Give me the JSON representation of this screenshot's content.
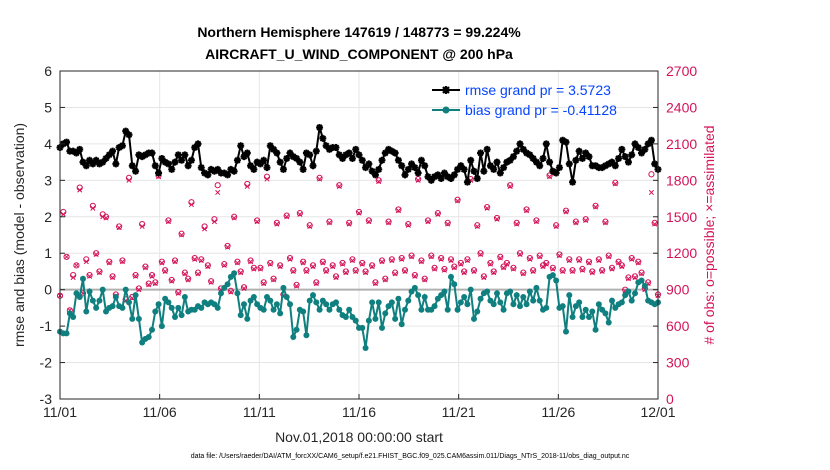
{
  "chart_data": {
    "type": "line",
    "title": "Northern Hemisphere 147619 / 148773 = 99.224%",
    "subtitle": "AIRCRAFT_U_WIND_COMPONENT @ 200 hPa",
    "xlabel": "Nov.01,2018 00:00:00 start",
    "ylabel": "rmse and bias (model - observation)",
    "y2label": "# of obs: o=possible; ×=assimilated",
    "footnote": "data file: /Users/raeder/DAI/ATM_forcXX/CAM6_setup/f.e21.FHIST_BGC.f09_025.CAM6assim.011/Diags_NTrS_2018-11/obs_diag_output.nc",
    "xlim": [
      0,
      30
    ],
    "ylim": [
      -3,
      6
    ],
    "y2lim": [
      0,
      2700
    ],
    "xticks": [
      0,
      5,
      10,
      15,
      20,
      25,
      30
    ],
    "xticklabels": [
      "11/01",
      "11/06",
      "11/11",
      "11/16",
      "11/21",
      "11/26",
      "12/01"
    ],
    "yticks": [
      "-3",
      "-2",
      "-1",
      "0",
      "1",
      "2",
      "3",
      "4",
      "5",
      "6"
    ],
    "y2ticks": [
      "0",
      "300",
      "600",
      "900",
      "1200",
      "1500",
      "1800",
      "2100",
      "2400",
      "2700"
    ],
    "colors": {
      "rmse": "#000000",
      "bias": "#0f7f7f",
      "obs": "#d4145a",
      "zero": "#b0b0b0",
      "legend_text": "#0645ff"
    },
    "series": [
      {
        "name": "rmse grand pr = 3.5723",
        "color": "#000000",
        "marker": "star",
        "values": [
          3.9,
          4.0,
          4.05,
          3.8,
          3.8,
          3.75,
          3.85,
          3.5,
          3.4,
          3.55,
          3.45,
          3.55,
          3.45,
          3.5,
          3.6,
          3.7,
          3.8,
          3.45,
          3.9,
          3.95,
          4.35,
          4.25,
          3.4,
          3.25,
          3.7,
          3.65,
          3.7,
          3.75,
          3.75,
          3.4,
          3.2,
          3.6,
          3.5,
          3.45,
          3.3,
          3.5,
          3.7,
          3.55,
          3.7,
          3.4,
          3.55,
          3.9,
          4.0,
          3.35,
          3.2,
          3.15,
          3.3,
          3.25,
          3.3,
          3.2,
          3.2,
          3.15,
          3.3,
          3.25,
          3.55,
          3.95,
          3.65,
          3.75,
          3.4,
          3.3,
          3.5,
          3.45,
          3.55,
          3.35,
          3.95,
          3.85,
          3.75,
          3.5,
          3.3,
          3.6,
          3.75,
          3.65,
          3.6,
          3.5,
          3.3,
          3.75,
          3.7,
          3.4,
          3.8,
          4.45,
          4.15,
          3.95,
          3.85,
          3.9,
          3.9,
          3.7,
          3.6,
          3.7,
          3.75,
          3.6,
          3.85,
          3.7,
          3.55,
          3.35,
          3.45,
          3.25,
          3.15,
          3.3,
          3.55,
          3.75,
          3.85,
          3.8,
          3.75,
          3.55,
          3.4,
          3.15,
          3.3,
          3.45,
          3.35,
          3.2,
          3.55,
          3.4,
          3.1,
          3.0,
          3.1,
          3.15,
          3.05,
          3.2,
          3.1,
          3.05,
          3.15,
          3.3,
          3.4,
          3.3,
          2.95,
          3.55,
          3.25,
          3.05,
          3.75,
          3.25,
          3.85,
          3.4,
          3.3,
          3.5,
          3.2,
          3.35,
          3.5,
          3.55,
          3.65,
          3.8,
          4.0,
          3.85,
          3.75,
          3.7,
          3.6,
          3.5,
          3.4,
          3.6,
          4.0,
          3.5,
          3.25,
          3.2,
          3.35,
          4.1,
          4.05,
          3.45,
          2.95,
          3.55,
          3.8,
          3.6,
          3.75,
          3.65,
          3.4,
          3.4,
          3.35,
          3.35,
          3.4,
          3.45,
          3.5,
          3.4,
          3.6,
          3.85,
          3.65,
          3.5,
          3.7,
          4.0,
          3.9,
          3.75,
          3.85,
          4.0,
          4.1,
          3.45,
          3.3
        ]
      },
      {
        "name": "bias grand pr = -0.41128",
        "color": "#0f7f7f",
        "marker": "dot",
        "values": [
          -1.15,
          -1.2,
          -1.2,
          -0.65,
          -0.75,
          -0.1,
          -0.2,
          0.3,
          -0.6,
          -0.05,
          -0.3,
          -0.5,
          -0.3,
          0.0,
          -0.6,
          -0.5,
          -0.45,
          -0.2,
          -0.45,
          -0.5,
          0.0,
          -0.35,
          -0.8,
          -0.15,
          -0.8,
          -1.45,
          -1.35,
          -1.3,
          -1.1,
          -0.6,
          -0.4,
          -1.0,
          -0.25,
          -0.35,
          -0.5,
          -0.75,
          -0.5,
          -0.7,
          -0.2,
          -0.6,
          -0.55,
          -0.55,
          -0.45,
          -0.5,
          -0.35,
          -0.4,
          -0.35,
          -0.4,
          -0.5,
          -0.1,
          0.05,
          0.15,
          0.35,
          0.45,
          -0.1,
          -0.7,
          -0.4,
          -0.8,
          -0.3,
          -0.2,
          -0.4,
          -0.5,
          -0.55,
          -0.2,
          -0.3,
          -0.55,
          -0.4,
          -0.65,
          0.05,
          -0.2,
          -0.4,
          -1.3,
          -1.1,
          -0.55,
          -0.6,
          -1.25,
          -0.3,
          -0.15,
          -0.35,
          -0.55,
          -0.3,
          -0.4,
          -0.55,
          -0.4,
          -0.35,
          -0.55,
          -0.7,
          -0.75,
          -0.55,
          -0.75,
          -0.85,
          -1.05,
          -1.05,
          -1.6,
          -0.85,
          -0.35,
          -0.8,
          -0.35,
          -1.05,
          -0.65,
          -0.45,
          -0.35,
          -0.8,
          -0.25,
          -0.95,
          -0.55,
          -0.3,
          -0.05,
          0.05,
          -0.15,
          -0.55,
          -0.2,
          -0.55,
          -0.55,
          -0.45,
          -0.25,
          -0.15,
          -0.05,
          -0.55,
          0.35,
          0.15,
          -0.55,
          -0.35,
          -0.2,
          -0.4,
          0.0,
          -0.8,
          -0.6,
          -0.25,
          -0.1,
          -0.05,
          -0.3,
          -0.4,
          -0.1,
          -0.35,
          -0.55,
          -0.1,
          -0.05,
          -0.4,
          -0.15,
          -0.45,
          -0.2,
          -0.4,
          -0.05,
          -0.3,
          0.05,
          -0.3,
          -0.55,
          -0.5,
          0.35,
          0.4,
          0.25,
          -0.5,
          -0.45,
          -1.15,
          -0.15,
          -0.75,
          -0.45,
          -0.35,
          -0.75,
          -0.55,
          -0.75,
          -0.6,
          -1.1,
          -0.4,
          -0.55,
          -0.65,
          -0.9,
          -0.3,
          -0.5,
          -0.4,
          -0.35,
          -0.15,
          -0.05,
          -0.3,
          -0.1,
          0.2,
          0.25,
          0.1,
          -0.3,
          -0.35,
          -0.4,
          -0.35
        ]
      }
    ],
    "obs_possible": [
      850,
      1540,
      1170,
      730,
      1020,
      1100,
      1740,
      870,
      1150,
      1020,
      1590,
      1200,
      1050,
      1520,
      1500,
      1130,
      1010,
      860,
      1420,
      1140,
      820,
      1820,
      840,
      1020,
      910,
      1440,
      1090,
      950,
      1020,
      960,
      1840,
      1130,
      1060,
      1470,
      980,
      1140,
      880,
      1360,
      1040,
      990,
      1620,
      1160,
      1040,
      1150,
      1420,
      1100,
      970,
      1480,
      1760,
      910,
      1110,
      1260,
      890,
      1500,
      1130,
      1050,
      920,
      1770,
      1140,
      1080,
      1470,
      1080,
      960,
      1830,
      1120,
      990,
      1450,
      1100,
      860,
      1510,
      1160,
      1060,
      940,
      1530,
      1130,
      1060,
      1430,
      1100,
      960,
      1820,
      1130,
      1060,
      1460,
      1100,
      1010,
      1760,
      1120,
      1050,
      1450,
      1150,
      1060,
      1540,
      1120,
      1050,
      1470,
      1100,
      960,
      1800,
      1140,
      990,
      1460,
      1150,
      1040,
      1560,
      1160,
      1060,
      1440,
      1180,
      1020,
      1810,
      1140,
      990,
      1470,
      1180,
      1080,
      1530,
      1160,
      1070,
      1450,
      1150,
      1090,
      1640,
      1120,
      1050,
      1150,
      1810,
      1060,
      1430,
      1200,
      1010,
      1580,
      1120,
      1050,
      1490,
      1170,
      1090,
      1120,
      1760,
      1080,
      1450,
      1200,
      1040,
      1560,
      1160,
      1060,
      1470,
      1180,
      1100,
      1120,
      1840,
      1080,
      1430,
      1190,
      1060,
      1550,
      1150,
      1060,
      1460,
      1150,
      1070,
      1480,
      1130,
      1050,
      1590,
      1150,
      1060,
      1460,
      1180,
      1080,
      1780,
      1130,
      1100,
      900,
      1000,
      1160,
      1010,
      1130,
      1040,
      910,
      960,
      1850,
      1450,
      860
    ],
    "obs_assimilated": [
      850,
      1520,
      1170,
      730,
      1000,
      1100,
      1720,
      870,
      1130,
      1010,
      1570,
      1190,
      1040,
      1500,
      1490,
      1120,
      1000,
      850,
      1410,
      1130,
      810,
      1800,
      830,
      1010,
      900,
      1420,
      1080,
      940,
      1010,
      950,
      1830,
      1120,
      1050,
      1460,
      970,
      1130,
      870,
      1350,
      1030,
      980,
      1600,
      1150,
      1030,
      1140,
      1400,
      1090,
      960,
      1460,
      1700,
      900,
      1100,
      1250,
      880,
      1490,
      1120,
      1040,
      910,
      1750,
      1130,
      1070,
      1460,
      1070,
      950,
      1810,
      1110,
      980,
      1440,
      1090,
      850,
      1500,
      1150,
      1050,
      930,
      1520,
      1120,
      1050,
      1420,
      1090,
      950,
      1810,
      1120,
      1050,
      1450,
      1090,
      1000,
      1750,
      1110,
      1040,
      1440,
      1140,
      1050,
      1530,
      1110,
      1040,
      1460,
      1090,
      950,
      1790,
      1130,
      980,
      1450,
      1140,
      1030,
      1550,
      1150,
      1050,
      1430,
      1170,
      1010,
      1800,
      1130,
      980,
      1460,
      1170,
      1070,
      1520,
      1150,
      1060,
      1440,
      1140,
      1080,
      1630,
      1110,
      1040,
      1140,
      1800,
      1050,
      1420,
      1190,
      1000,
      1570,
      1110,
      1040,
      1480,
      1160,
      1080,
      1110,
      1750,
      1070,
      1440,
      1190,
      1030,
      1550,
      1150,
      1050,
      1460,
      1170,
      1090,
      1110,
      1830,
      1070,
      1420,
      1180,
      1050,
      1540,
      1140,
      1050,
      1450,
      1140,
      1060,
      1470,
      1120,
      1040,
      1580,
      1140,
      1050,
      1450,
      1170,
      1070,
      1770,
      1120,
      1090,
      890,
      990,
      1150,
      1000,
      1120,
      1030,
      900,
      950,
      1700,
      1440,
      850
    ]
  }
}
